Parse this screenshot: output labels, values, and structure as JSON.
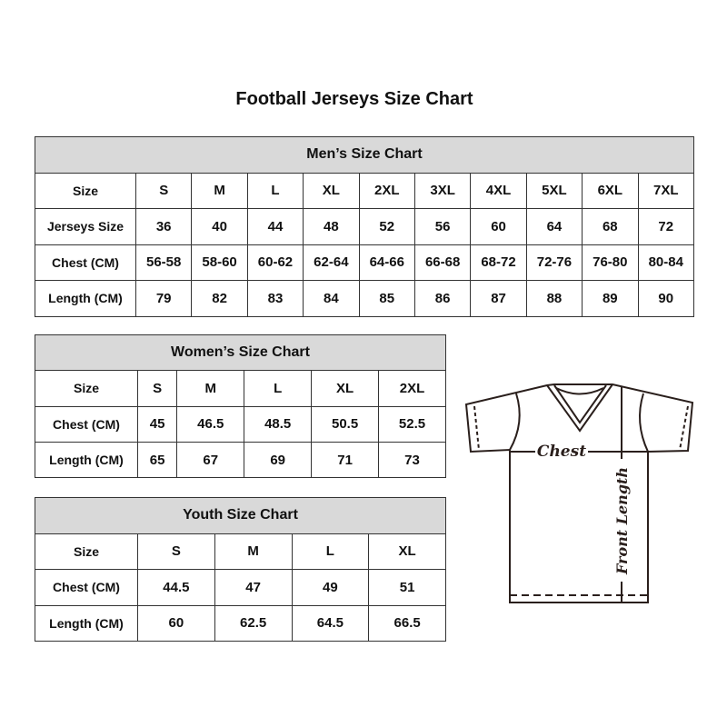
{
  "title": "Football Jerseys Size Chart",
  "men": {
    "caption": "Men’s Size Chart",
    "rows": [
      {
        "label": "Size",
        "values": [
          "S",
          "M",
          "L",
          "XL",
          "2XL",
          "3XL",
          "4XL",
          "5XL",
          "6XL",
          "7XL"
        ]
      },
      {
        "label": "Jerseys Size",
        "values": [
          "36",
          "40",
          "44",
          "48",
          "52",
          "56",
          "60",
          "64",
          "68",
          "72"
        ]
      },
      {
        "label": "Chest (CM)",
        "values": [
          "56-58",
          "58-60",
          "60-62",
          "62-64",
          "64-66",
          "66-68",
          "68-72",
          "72-76",
          "76-80",
          "80-84"
        ]
      },
      {
        "label": "Length (CM)",
        "values": [
          "79",
          "82",
          "83",
          "84",
          "85",
          "86",
          "87",
          "88",
          "89",
          "90"
        ]
      }
    ]
  },
  "women": {
    "caption": "Women’s Size Chart",
    "rows": [
      {
        "label": "Size",
        "values": [
          "S",
          "M",
          "L",
          "XL",
          "2XL"
        ]
      },
      {
        "label": "Chest (CM)",
        "values": [
          "45",
          "46.5",
          "48.5",
          "50.5",
          "52.5"
        ]
      },
      {
        "label": "Length (CM)",
        "values": [
          "65",
          "67",
          "69",
          "71",
          "73"
        ]
      }
    ]
  },
  "youth": {
    "caption": "Youth Size Chart",
    "rows": [
      {
        "label": "Size",
        "values": [
          "S",
          "M",
          "L",
          "XL"
        ]
      },
      {
        "label": "Chest (CM)",
        "values": [
          "44.5",
          "47",
          "49",
          "51"
        ]
      },
      {
        "label": "Length (CM)",
        "values": [
          "60",
          "62.5",
          "64.5",
          "66.5"
        ]
      }
    ]
  },
  "diagram": {
    "chest_label": "Chest",
    "length_label": "Front Length"
  },
  "colors": {
    "header_bg": "#d9d9d9",
    "border": "#333333"
  }
}
